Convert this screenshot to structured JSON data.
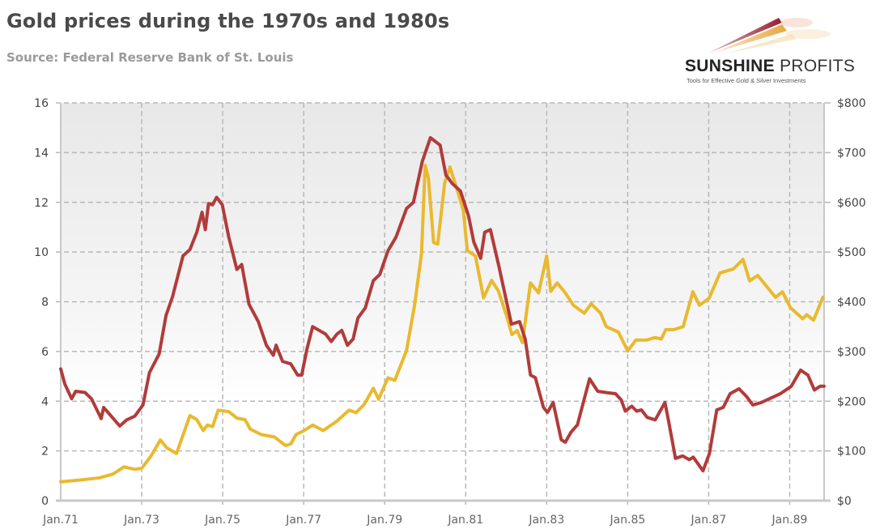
{
  "header": {
    "title": "Gold prices during the 1970s and 1980s",
    "subtitle": "Source: Federal Reserve Bank of St. Louis"
  },
  "logo": {
    "name_bold": "SUNSHINE",
    "name_light": "PROFITS",
    "tagline": "Tools for Effective Gold & Silver Investments"
  },
  "colors": {
    "red": "#b23b3b",
    "yellow": "#e9b92e",
    "grid": "#b8b8b8",
    "axis": "#c8c8c8"
  },
  "chart_data": {
    "type": "line",
    "title": "Gold prices during the 1970s and 1980s",
    "subtitle": "Source: Federal Reserve Bank of St. Louis",
    "xlim": [
      1971,
      1989.85
    ],
    "ylim_left": [
      0,
      16
    ],
    "ylim_right": [
      0,
      800
    ],
    "grid": true,
    "x_ticks": [
      {
        "value": 1971,
        "label": "Jan.71"
      },
      {
        "value": 1973,
        "label": "Jan.73"
      },
      {
        "value": 1975,
        "label": "Jan.75"
      },
      {
        "value": 1977,
        "label": "Jan.77"
      },
      {
        "value": 1979,
        "label": "Jan.79"
      },
      {
        "value": 1981,
        "label": "Jan.81"
      },
      {
        "value": 1983,
        "label": "Jan.83"
      },
      {
        "value": 1985,
        "label": "Jan.85"
      },
      {
        "value": 1987,
        "label": "Jan.87"
      },
      {
        "value": 1989,
        "label": "Jan.89"
      }
    ],
    "y_ticks_left": [
      {
        "value": 0,
        "label": "0"
      },
      {
        "value": 2,
        "label": "2"
      },
      {
        "value": 4,
        "label": "4"
      },
      {
        "value": 6,
        "label": "6"
      },
      {
        "value": 8,
        "label": "8"
      },
      {
        "value": 10,
        "label": "10"
      },
      {
        "value": 12,
        "label": "12"
      },
      {
        "value": 14,
        "label": "14"
      },
      {
        "value": 16,
        "label": "16"
      }
    ],
    "y_ticks_right": [
      {
        "value": 0,
        "label": "$0"
      },
      {
        "value": 100,
        "label": "$100"
      },
      {
        "value": 200,
        "label": "$200"
      },
      {
        "value": 300,
        "label": "$300"
      },
      {
        "value": 400,
        "label": "$400"
      },
      {
        "value": 500,
        "label": "$500"
      },
      {
        "value": 600,
        "label": "$600"
      },
      {
        "value": 700,
        "label": "$700"
      },
      {
        "value": 800,
        "label": "$800"
      }
    ],
    "series": [
      {
        "id": "red",
        "axis": "left",
        "color": "#b23b3b",
        "x": [
          1971.0,
          1971.1,
          1971.27,
          1971.37,
          1971.6,
          1971.76,
          1972.0,
          1972.06,
          1972.3,
          1972.46,
          1972.63,
          1972.83,
          1973.03,
          1973.19,
          1973.43,
          1973.6,
          1973.76,
          1974.02,
          1974.19,
          1974.36,
          1974.49,
          1974.57,
          1974.65,
          1974.75,
          1974.85,
          1974.99,
          1975.15,
          1975.35,
          1975.47,
          1975.65,
          1975.88,
          1976.08,
          1976.25,
          1976.32,
          1976.48,
          1976.68,
          1976.85,
          1976.95,
          1977.08,
          1977.22,
          1977.54,
          1977.68,
          1977.82,
          1977.94,
          1978.08,
          1978.22,
          1978.34,
          1978.52,
          1978.72,
          1978.88,
          1979.08,
          1979.28,
          1979.54,
          1979.71,
          1979.93,
          1980.13,
          1980.37,
          1980.51,
          1980.67,
          1980.87,
          1981.07,
          1981.2,
          1981.37,
          1981.47,
          1981.61,
          1981.81,
          1982.13,
          1982.33,
          1982.47,
          1982.6,
          1982.72,
          1982.92,
          1983.02,
          1983.16,
          1983.36,
          1983.46,
          1983.6,
          1983.76,
          1984.06,
          1984.26,
          1984.46,
          1984.7,
          1984.84,
          1984.94,
          1985.1,
          1985.22,
          1985.34,
          1985.48,
          1985.68,
          1985.92,
          1986.01,
          1986.18,
          1986.36,
          1986.52,
          1986.62,
          1986.86,
          1987.02,
          1987.2,
          1987.36,
          1987.53,
          1987.75,
          1987.93,
          1988.09,
          1988.3,
          1988.5,
          1988.77,
          1989.04,
          1989.27,
          1989.45,
          1989.61,
          1989.75,
          1989.85
        ],
        "y": [
          5.3,
          4.7,
          4.1,
          4.4,
          4.35,
          4.1,
          3.3,
          3.75,
          3.3,
          3.0,
          3.25,
          3.4,
          3.85,
          5.15,
          5.9,
          7.45,
          8.2,
          9.85,
          10.1,
          10.8,
          11.6,
          10.9,
          11.95,
          11.9,
          12.2,
          11.9,
          10.6,
          9.3,
          9.5,
          7.9,
          7.2,
          6.25,
          5.85,
          6.25,
          5.6,
          5.5,
          5.05,
          5.05,
          6.1,
          7.0,
          6.7,
          6.4,
          6.7,
          6.85,
          6.25,
          6.5,
          7.35,
          7.75,
          8.85,
          9.1,
          10.05,
          10.6,
          11.75,
          12.0,
          13.65,
          14.6,
          14.3,
          13.1,
          12.75,
          12.45,
          11.45,
          10.4,
          9.75,
          10.8,
          10.9,
          9.5,
          7.1,
          7.2,
          6.5,
          5.05,
          4.95,
          3.75,
          3.55,
          3.95,
          2.45,
          2.35,
          2.75,
          3.05,
          4.9,
          4.4,
          4.35,
          4.3,
          4.05,
          3.6,
          3.8,
          3.6,
          3.65,
          3.35,
          3.25,
          3.95,
          3.2,
          1.7,
          1.8,
          1.65,
          1.75,
          1.2,
          1.9,
          3.65,
          3.75,
          4.3,
          4.5,
          4.2,
          3.85,
          3.95,
          4.1,
          4.3,
          4.6,
          5.25,
          5.05,
          4.45,
          4.6,
          4.6
        ]
      },
      {
        "id": "yellow",
        "axis": "right",
        "color": "#e9b92e",
        "x": [
          1971.0,
          1971.43,
          1971.96,
          1972.3,
          1972.56,
          1972.83,
          1973.0,
          1973.23,
          1973.46,
          1973.62,
          1973.86,
          1974.19,
          1974.36,
          1974.52,
          1974.62,
          1974.75,
          1974.89,
          1975.15,
          1975.35,
          1975.55,
          1975.68,
          1975.95,
          1976.28,
          1976.55,
          1976.68,
          1976.81,
          1977.01,
          1977.22,
          1977.48,
          1977.82,
          1978.12,
          1978.29,
          1978.49,
          1978.72,
          1978.85,
          1979.08,
          1979.25,
          1979.54,
          1979.74,
          1979.91,
          1980.0,
          1980.08,
          1980.21,
          1980.31,
          1980.48,
          1980.61,
          1980.78,
          1980.94,
          1981.04,
          1981.24,
          1981.44,
          1981.64,
          1981.81,
          1982.01,
          1982.14,
          1982.27,
          1982.4,
          1982.6,
          1982.8,
          1983.0,
          1983.1,
          1983.26,
          1983.46,
          1983.66,
          1983.93,
          1984.1,
          1984.33,
          1984.47,
          1984.77,
          1985.0,
          1985.2,
          1985.47,
          1985.67,
          1985.83,
          1985.94,
          1986.14,
          1986.37,
          1986.61,
          1986.77,
          1987.01,
          1987.28,
          1987.61,
          1987.85,
          1988.01,
          1988.21,
          1988.65,
          1988.82,
          1989.02,
          1989.32,
          1989.42,
          1989.59,
          1989.82
        ],
        "y": [
          38,
          41,
          46,
          54,
          68,
          63,
          65,
          90,
          122,
          106,
          95,
          171,
          163,
          141,
          152,
          149,
          182,
          179,
          166,
          163,
          144,
          133,
          128,
          111,
          114,
          133,
          141,
          152,
          141,
          160,
          182,
          177,
          193,
          226,
          204,
          247,
          242,
          302,
          394,
          497,
          674,
          649,
          519,
          516,
          639,
          671,
          628,
          584,
          503,
          492,
          408,
          443,
          421,
          372,
          334,
          342,
          318,
          438,
          418,
          492,
          421,
          438,
          418,
          393,
          377,
          396,
          377,
          350,
          339,
          301,
          323,
          323,
          328,
          325,
          344,
          344,
          350,
          420,
          393,
          407,
          458,
          466,
          485,
          442,
          453,
          409,
          420,
          388,
          366,
          374,
          363,
          409
        ]
      }
    ]
  }
}
